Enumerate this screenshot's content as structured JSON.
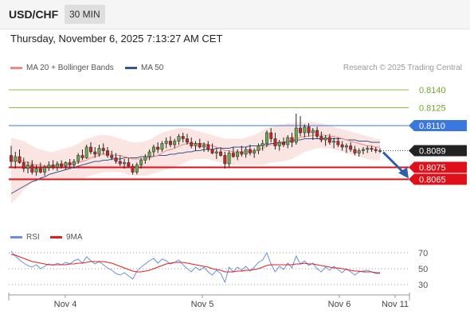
{
  "header": {
    "symbol": "USD/CHF",
    "timeframe": "30 MIN"
  },
  "datetime": "Thursday, November 6, 2025 7:13:27 AM CET",
  "credit": "Research © 2025 Trading Central",
  "legend": {
    "ma20": {
      "label": "MA 20 + Bollinger Bands",
      "color": "#f08a84"
    },
    "ma50": {
      "label": "MA 50",
      "color": "#33568f"
    },
    "rsi": {
      "label": "RSI",
      "color": "#6a8fe0"
    },
    "rsi_ma": {
      "label": "9MA",
      "color": "#e02020"
    }
  },
  "chart_data": [
    {
      "type": "candlestick",
      "ylim": [
        0.803,
        0.815
      ],
      "x_labels": [
        "Nov 4",
        "Nov 5",
        "Nov 6",
        "Nov 11"
      ],
      "levels": [
        {
          "value": 0.814,
          "label": "0.8140",
          "color": "#8cbf40"
        },
        {
          "value": 0.8125,
          "label": "0.8125",
          "color": "#8cbf40"
        },
        {
          "value": 0.811,
          "label": "0.8110",
          "color": "#3a78e0"
        },
        {
          "value": 0.8089,
          "label": "0.8089",
          "color": "#222222"
        },
        {
          "value": 0.8075,
          "label": "0.8075",
          "color": "#e0101a"
        },
        {
          "value": 0.8065,
          "label": "0.8065",
          "color": "#e0101a"
        }
      ],
      "ohlc": [
        [
          0.8085,
          0.8093,
          0.8075,
          0.808
        ],
        [
          0.808,
          0.8088,
          0.8074,
          0.8084
        ],
        [
          0.8084,
          0.809,
          0.8078,
          0.8079
        ],
        [
          0.8079,
          0.8083,
          0.8071,
          0.8074
        ],
        [
          0.8074,
          0.808,
          0.807,
          0.8077
        ],
        [
          0.8077,
          0.8081,
          0.8069,
          0.8071
        ],
        [
          0.8071,
          0.8077,
          0.8068,
          0.8074
        ],
        [
          0.8074,
          0.8079,
          0.807,
          0.8071
        ],
        [
          0.8071,
          0.8077,
          0.8068,
          0.8075
        ],
        [
          0.8075,
          0.808,
          0.8072,
          0.8077
        ],
        [
          0.8077,
          0.8081,
          0.8073,
          0.8075
        ],
        [
          0.8075,
          0.808,
          0.8072,
          0.8078
        ],
        [
          0.8078,
          0.8081,
          0.8074,
          0.8076
        ],
        [
          0.8076,
          0.808,
          0.8073,
          0.8079
        ],
        [
          0.8079,
          0.8082,
          0.8075,
          0.8077
        ],
        [
          0.8077,
          0.8082,
          0.8074,
          0.808
        ],
        [
          0.808,
          0.8087,
          0.8078,
          0.8085
        ],
        [
          0.8085,
          0.809,
          0.8081,
          0.8083
        ],
        [
          0.8083,
          0.8094,
          0.8082,
          0.8092
        ],
        [
          0.8092,
          0.8096,
          0.8086,
          0.8088
        ],
        [
          0.8088,
          0.8092,
          0.8083,
          0.8086
        ],
        [
          0.8086,
          0.8094,
          0.8084,
          0.8091
        ],
        [
          0.8091,
          0.8095,
          0.8086,
          0.8089
        ],
        [
          0.8089,
          0.8092,
          0.8083,
          0.8085
        ],
        [
          0.8085,
          0.8089,
          0.8081,
          0.8083
        ],
        [
          0.8083,
          0.8087,
          0.8078,
          0.808
        ],
        [
          0.808,
          0.8085,
          0.8076,
          0.8078
        ],
        [
          0.8078,
          0.8082,
          0.8074,
          0.8079
        ],
        [
          0.8079,
          0.8083,
          0.8075,
          0.8076
        ],
        [
          0.8076,
          0.8078,
          0.8069,
          0.8071
        ],
        [
          0.8071,
          0.8079,
          0.8069,
          0.8077
        ],
        [
          0.8077,
          0.8083,
          0.8074,
          0.8081
        ],
        [
          0.8081,
          0.8086,
          0.8078,
          0.8084
        ],
        [
          0.8084,
          0.809,
          0.8081,
          0.8088
        ],
        [
          0.8088,
          0.8094,
          0.8084,
          0.8092
        ],
        [
          0.8092,
          0.8096,
          0.8087,
          0.809
        ],
        [
          0.809,
          0.8097,
          0.8088,
          0.8095
        ],
        [
          0.8095,
          0.81,
          0.8091,
          0.8097
        ],
        [
          0.8097,
          0.8101,
          0.8092,
          0.8094
        ],
        [
          0.8094,
          0.8099,
          0.8091,
          0.8097
        ],
        [
          0.8097,
          0.8103,
          0.8094,
          0.8101
        ],
        [
          0.8101,
          0.8104,
          0.8096,
          0.8099
        ],
        [
          0.8099,
          0.8103,
          0.8094,
          0.8096
        ],
        [
          0.8096,
          0.81,
          0.8091,
          0.8093
        ],
        [
          0.8093,
          0.8097,
          0.8089,
          0.8095
        ],
        [
          0.8095,
          0.8099,
          0.8091,
          0.8092
        ],
        [
          0.8092,
          0.8096,
          0.8088,
          0.8094
        ],
        [
          0.8094,
          0.8097,
          0.8088,
          0.809
        ],
        [
          0.809,
          0.8095,
          0.8086,
          0.8087
        ],
        [
          0.8087,
          0.8091,
          0.8082,
          0.8088
        ],
        [
          0.8088,
          0.8092,
          0.8084,
          0.8085
        ],
        [
          0.8085,
          0.8088,
          0.8074,
          0.8078
        ],
        [
          0.8078,
          0.8089,
          0.8075,
          0.8087
        ],
        [
          0.8087,
          0.8092,
          0.8083,
          0.8084
        ],
        [
          0.8084,
          0.809,
          0.8081,
          0.8088
        ],
        [
          0.8088,
          0.8093,
          0.8084,
          0.8086
        ],
        [
          0.8086,
          0.8092,
          0.8083,
          0.809
        ],
        [
          0.809,
          0.8094,
          0.8085,
          0.8087
        ],
        [
          0.8087,
          0.8091,
          0.8083,
          0.8089
        ],
        [
          0.8089,
          0.8095,
          0.8086,
          0.8093
        ],
        [
          0.8093,
          0.8098,
          0.8089,
          0.8095
        ],
        [
          0.8095,
          0.8106,
          0.8092,
          0.8104
        ],
        [
          0.8104,
          0.8108,
          0.8096,
          0.8099
        ],
        [
          0.8099,
          0.8104,
          0.809,
          0.8093
        ],
        [
          0.8093,
          0.8098,
          0.8089,
          0.8096
        ],
        [
          0.8096,
          0.81,
          0.8092,
          0.8094
        ],
        [
          0.8094,
          0.8102,
          0.8091,
          0.81
        ],
        [
          0.81,
          0.8104,
          0.8092,
          0.8096
        ],
        [
          0.8096,
          0.812,
          0.8094,
          0.8108
        ],
        [
          0.8108,
          0.8118,
          0.8101,
          0.8104
        ],
        [
          0.8104,
          0.8111,
          0.81,
          0.8109
        ],
        [
          0.8109,
          0.8112,
          0.8101,
          0.8104
        ],
        [
          0.8104,
          0.8108,
          0.8098,
          0.8106
        ],
        [
          0.8106,
          0.8109,
          0.8099,
          0.8101
        ],
        [
          0.8101,
          0.8105,
          0.8096,
          0.8098
        ],
        [
          0.8098,
          0.8102,
          0.8093,
          0.81
        ],
        [
          0.81,
          0.8103,
          0.8094,
          0.8096
        ],
        [
          0.8096,
          0.81,
          0.8091,
          0.8097
        ],
        [
          0.8097,
          0.81,
          0.8092,
          0.8094
        ],
        [
          0.8094,
          0.8097,
          0.8089,
          0.8092
        ],
        [
          0.8092,
          0.8095,
          0.8087,
          0.8093
        ],
        [
          0.8093,
          0.8096,
          0.8088,
          0.809
        ],
        [
          0.809,
          0.8093,
          0.8085,
          0.8087
        ],
        [
          0.8087,
          0.8091,
          0.8084,
          0.8089
        ],
        [
          0.8089,
          0.8092,
          0.8086,
          0.809
        ],
        [
          0.809,
          0.8093,
          0.8087,
          0.8091
        ],
        [
          0.8091,
          0.8093,
          0.8088,
          0.809
        ],
        [
          0.809,
          0.8092,
          0.8087,
          0.8089
        ],
        [
          0.8089,
          0.8091,
          0.8087,
          0.8089
        ]
      ],
      "ma20": [
        0.808,
        0.808,
        0.8081,
        0.808,
        0.8079,
        0.8078,
        0.8077,
        0.8077,
        0.8076,
        0.8076,
        0.8076,
        0.8077,
        0.8077,
        0.8077,
        0.8078,
        0.8078,
        0.8079,
        0.808,
        0.8081,
        0.8083,
        0.8084,
        0.8085,
        0.8086,
        0.8086,
        0.8086,
        0.8085,
        0.8085,
        0.8084,
        0.8083,
        0.8082,
        0.8082,
        0.8082,
        0.8082,
        0.8083,
        0.8084,
        0.8085,
        0.8087,
        0.8089,
        0.809,
        0.8091,
        0.8093,
        0.8094,
        0.8095,
        0.8095,
        0.8095,
        0.8095,
        0.8095,
        0.8094,
        0.8093,
        0.8092,
        0.8091,
        0.8089,
        0.8089,
        0.8088,
        0.8088,
        0.8088,
        0.8088,
        0.8088,
        0.8089,
        0.809,
        0.8091,
        0.8093,
        0.8094,
        0.8094,
        0.8095,
        0.8095,
        0.8096,
        0.8097,
        0.8099,
        0.81,
        0.8101,
        0.8101,
        0.8102,
        0.8102,
        0.8102,
        0.8102,
        0.8101,
        0.8101,
        0.81,
        0.8099,
        0.8098,
        0.8097,
        0.8096,
        0.8095,
        0.8094,
        0.8093,
        0.8093,
        0.8092,
        0.8092
      ],
      "ma50": [
        0.8053,
        0.8055,
        0.8057,
        0.8059,
        0.8061,
        0.8063,
        0.8064,
        0.8066,
        0.8067,
        0.8069,
        0.807,
        0.8071,
        0.8072,
        0.8073,
        0.8074,
        0.8075,
        0.8076,
        0.8077,
        0.8078,
        0.8079,
        0.808,
        0.808,
        0.8081,
        0.8081,
        0.8082,
        0.8082,
        0.8082,
        0.8083,
        0.8083,
        0.8083,
        0.8083,
        0.8084,
        0.8084,
        0.8084,
        0.8084,
        0.8085,
        0.8085,
        0.8085,
        0.8086,
        0.8086,
        0.8087,
        0.8087,
        0.8088,
        0.8088,
        0.8089,
        0.8089,
        0.809,
        0.809,
        0.809,
        0.8091,
        0.8091,
        0.8091,
        0.8091,
        0.8092,
        0.8092,
        0.8092,
        0.8092,
        0.8093,
        0.8093,
        0.8093,
        0.8094,
        0.8094,
        0.8095,
        0.8095,
        0.8096,
        0.8096,
        0.8097,
        0.8097,
        0.8098,
        0.8098,
        0.8099,
        0.8099,
        0.8099,
        0.8099,
        0.8099,
        0.8099,
        0.8099,
        0.8099,
        0.8099,
        0.8099,
        0.8098,
        0.8098,
        0.8098,
        0.8097,
        0.8097,
        0.8097,
        0.8096,
        0.8096,
        0.8096
      ],
      "bb_upper": [
        0.81,
        0.8099,
        0.8098,
        0.8097,
        0.8095,
        0.8093,
        0.8091,
        0.809,
        0.8089,
        0.8088,
        0.8088,
        0.8089,
        0.809,
        0.8091,
        0.8092,
        0.8093,
        0.8095,
        0.8097,
        0.8099,
        0.81,
        0.8101,
        0.8102,
        0.8102,
        0.8102,
        0.8101,
        0.81,
        0.8099,
        0.8098,
        0.8097,
        0.8096,
        0.8096,
        0.8096,
        0.8097,
        0.8098,
        0.81,
        0.8102,
        0.8104,
        0.8105,
        0.8106,
        0.8107,
        0.8108,
        0.8108,
        0.8108,
        0.8107,
        0.8106,
        0.8105,
        0.8104,
        0.8103,
        0.8102,
        0.8101,
        0.81,
        0.8099,
        0.8099,
        0.8099,
        0.8099,
        0.8099,
        0.81,
        0.8101,
        0.8102,
        0.8104,
        0.8106,
        0.8108,
        0.8109,
        0.811,
        0.8111,
        0.8111,
        0.8112,
        0.8112,
        0.8113,
        0.8113,
        0.8113,
        0.8113,
        0.8113,
        0.8112,
        0.8112,
        0.8111,
        0.811,
        0.8109,
        0.8108,
        0.8107,
        0.8106,
        0.8105,
        0.8104,
        0.8103,
        0.8102,
        0.8101,
        0.81,
        0.8099,
        0.8099
      ],
      "bb_lower": [
        0.8045,
        0.8048,
        0.8052,
        0.8056,
        0.8059,
        0.8062,
        0.8064,
        0.8065,
        0.8066,
        0.8066,
        0.8066,
        0.8066,
        0.8066,
        0.8066,
        0.8066,
        0.8066,
        0.8066,
        0.8066,
        0.8067,
        0.8068,
        0.8069,
        0.807,
        0.8071,
        0.8071,
        0.8071,
        0.8071,
        0.8071,
        0.807,
        0.8069,
        0.8068,
        0.8068,
        0.8068,
        0.8068,
        0.8069,
        0.807,
        0.8071,
        0.8072,
        0.8073,
        0.8074,
        0.8075,
        0.8077,
        0.8078,
        0.808,
        0.8081,
        0.8082,
        0.8082,
        0.8082,
        0.8082,
        0.8081,
        0.808,
        0.8079,
        0.8078,
        0.8077,
        0.8077,
        0.8077,
        0.8077,
        0.8077,
        0.8077,
        0.8077,
        0.8077,
        0.8077,
        0.8078,
        0.8079,
        0.8079,
        0.808,
        0.808,
        0.8081,
        0.8082,
        0.8084,
        0.8086,
        0.8088,
        0.8089,
        0.809,
        0.8091,
        0.8091,
        0.8091,
        0.8091,
        0.809,
        0.8089,
        0.8088,
        0.8087,
        0.8086,
        0.8085,
        0.8084,
        0.8083,
        0.8082,
        0.8081,
        0.8081,
        0.8081
      ],
      "forecast_to": 0.8065
    },
    {
      "type": "line",
      "ylim": [
        20,
        80
      ],
      "y_ticks": [
        70,
        50,
        30
      ],
      "series": [
        {
          "name": "RSI",
          "values": [
            72,
            66,
            61,
            57,
            54,
            52,
            55,
            50,
            53,
            56,
            54,
            57,
            55,
            58,
            56,
            60,
            62,
            57,
            65,
            60,
            56,
            59,
            55,
            51,
            48,
            44,
            42,
            45,
            41,
            37,
            47,
            52,
            56,
            60,
            63,
            57,
            62,
            60,
            56,
            58,
            61,
            55,
            50,
            46,
            52,
            48,
            52,
            46,
            42,
            48,
            44,
            33,
            52,
            46,
            52,
            48,
            53,
            47,
            52,
            58,
            61,
            70,
            56,
            46,
            53,
            49,
            57,
            51,
            66,
            56,
            60,
            54,
            57,
            50,
            46,
            52,
            48,
            53,
            49,
            45,
            50,
            46,
            42,
            46,
            47,
            48,
            46,
            44,
            44
          ]
        },
        {
          "name": "9MA",
          "values": [
            68,
            67,
            65,
            63,
            61,
            59,
            58,
            57,
            56,
            55,
            55,
            55,
            55,
            55,
            56,
            56,
            57,
            57,
            58,
            59,
            59,
            59,
            59,
            58,
            57,
            55,
            53,
            51,
            49,
            47,
            46,
            46,
            47,
            48,
            50,
            52,
            54,
            56,
            57,
            58,
            58,
            58,
            57,
            56,
            55,
            54,
            53,
            52,
            50,
            49,
            48,
            46,
            46,
            46,
            47,
            47,
            48,
            48,
            49,
            50,
            52,
            54,
            55,
            55,
            55,
            55,
            55,
            55,
            56,
            56,
            57,
            56,
            56,
            55,
            54,
            53,
            52,
            51,
            51,
            50,
            49,
            48,
            47,
            47,
            46,
            46,
            46,
            45,
            45
          ]
        }
      ]
    }
  ]
}
